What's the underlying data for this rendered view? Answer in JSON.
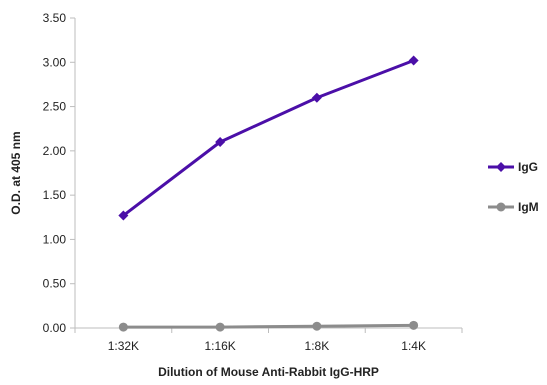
{
  "chart_data": {
    "type": "line",
    "categories": [
      "1:32K",
      "1:16K",
      "1:8K",
      "1:4K"
    ],
    "series": [
      {
        "name": "IgG",
        "values": [
          1.27,
          2.1,
          2.6,
          3.02
        ],
        "color": "#4B0FA8",
        "marker": "diamond"
      },
      {
        "name": "IgM",
        "values": [
          0.01,
          0.01,
          0.02,
          0.03
        ],
        "color": "#8C8C8C",
        "marker": "circle"
      }
    ],
    "xlabel": "Dilution of Mouse Anti-Rabbit IgG-HRP",
    "ylabel": "O.D. at 405 nm",
    "ylim": [
      0,
      3.5
    ],
    "yticks": [
      "0.00",
      "0.50",
      "1.00",
      "1.50",
      "2.00",
      "2.50",
      "3.00",
      "3.50"
    ],
    "grid": false,
    "legend": "right"
  }
}
